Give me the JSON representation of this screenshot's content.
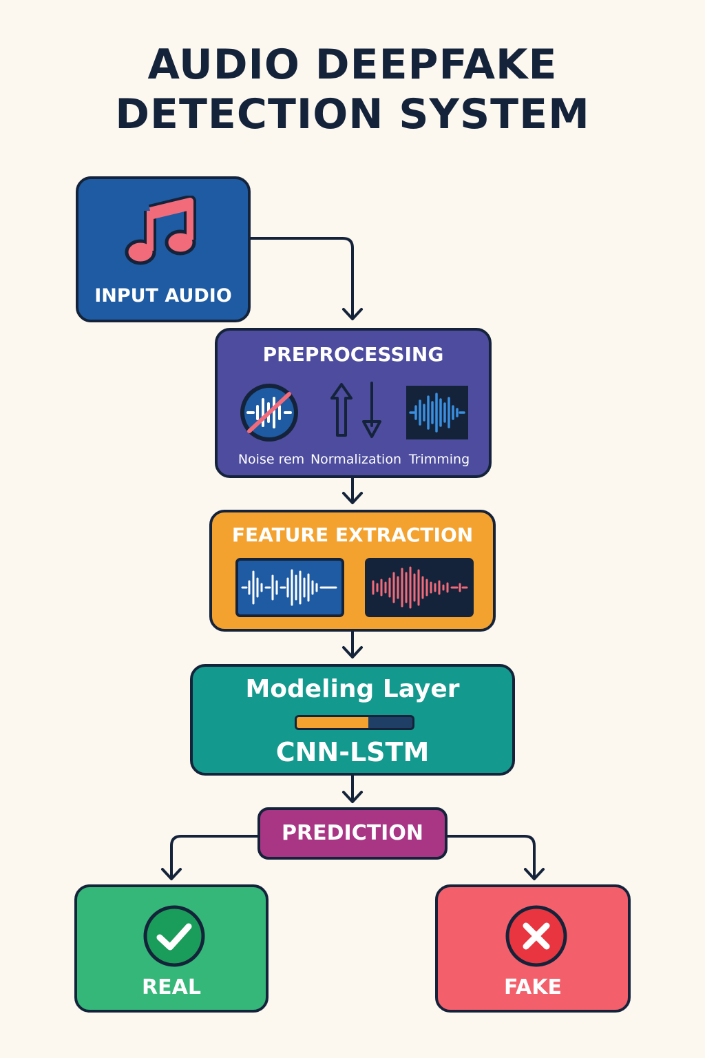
{
  "title": {
    "line1": "AUDIO DEEPFAKE",
    "line2": "DETECTION SYSTEM"
  },
  "input": {
    "label": "INPUT AUDIO",
    "icon": "music-note-icon"
  },
  "preprocessing": {
    "title": "PREPROCESSING",
    "steps": [
      {
        "label": "Noise rem",
        "icon": "noise-removal-icon"
      },
      {
        "label": "Normalization",
        "icon": "up-down-arrows-icon"
      },
      {
        "label": "Trimming",
        "icon": "waveform-icon"
      }
    ]
  },
  "feature_extraction": {
    "title": "FEATURE EXTRACTION"
  },
  "modeling": {
    "title": "Modeling Layer",
    "model": "CNN-LSTM",
    "progress": 0.62
  },
  "prediction": {
    "label": "PREDICTION"
  },
  "outputs": {
    "real": {
      "label": "REAL",
      "icon": "check-icon"
    },
    "fake": {
      "label": "FAKE",
      "icon": "cross-icon"
    }
  },
  "colors": {
    "background": "#fcf8f0",
    "outline": "#14233a",
    "input": "#1e5ba3",
    "preprocessing": "#4d4c9e",
    "feature": "#f3a230",
    "modeling": "#13998d",
    "prediction": "#a93585",
    "real": "#34b778",
    "fake": "#f45f6c",
    "accent_pink": "#f26b7a"
  }
}
